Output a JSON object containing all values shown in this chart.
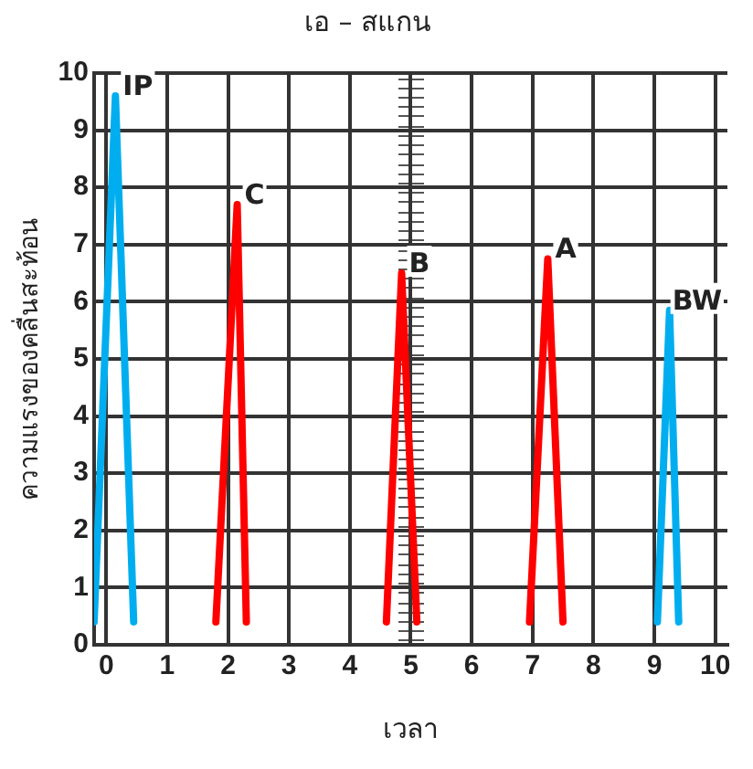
{
  "chart_data": {
    "type": "line",
    "title": "เอ – สแกน",
    "xlabel": "เวลา",
    "ylabel": "ความแรงของคลื่นสะท้อน",
    "xlim": [
      -0.2,
      10.2
    ],
    "xticks": [
      0,
      1,
      2,
      3,
      4,
      5,
      6,
      7,
      8,
      9,
      10
    ],
    "ylim": [
      0,
      10
    ],
    "yticks": [
      0,
      1,
      2,
      3,
      4,
      5,
      6,
      7,
      8,
      9,
      10
    ],
    "grid": true,
    "legend": false,
    "marker": "none",
    "line_style": "solid",
    "series": [
      {
        "color": "#00aeef",
        "x": [
          -0.2,
          0.15,
          0.45
        ],
        "values": [
          0.4,
          9.6,
          0.4
        ]
      },
      {
        "color": "#ff0000",
        "x": [
          1.8,
          2.15,
          2.3
        ],
        "values": [
          0.4,
          7.7,
          0.4
        ]
      },
      {
        "color": "#ff0000",
        "x": [
          4.6,
          4.85,
          5.1
        ],
        "values": [
          0.4,
          6.5,
          0.4
        ]
      },
      {
        "color": "#ff0000",
        "x": [
          6.95,
          7.25,
          7.5
        ],
        "values": [
          0.4,
          6.75,
          0.4
        ]
      },
      {
        "color": "#00aeef",
        "x": [
          9.05,
          9.25,
          9.4
        ],
        "values": [
          0.4,
          5.85,
          0.4
        ]
      }
    ],
    "annotations": [
      {
        "text": "IP",
        "x": 0.15,
        "y": 9.6
      },
      {
        "text": "C",
        "x": 2.15,
        "y": 7.7
      },
      {
        "text": "B",
        "x": 4.85,
        "y": 6.5
      },
      {
        "text": "A",
        "x": 7.25,
        "y": 6.75
      },
      {
        "text": "BW",
        "x": 9.25,
        "y": 5.85
      }
    ]
  }
}
